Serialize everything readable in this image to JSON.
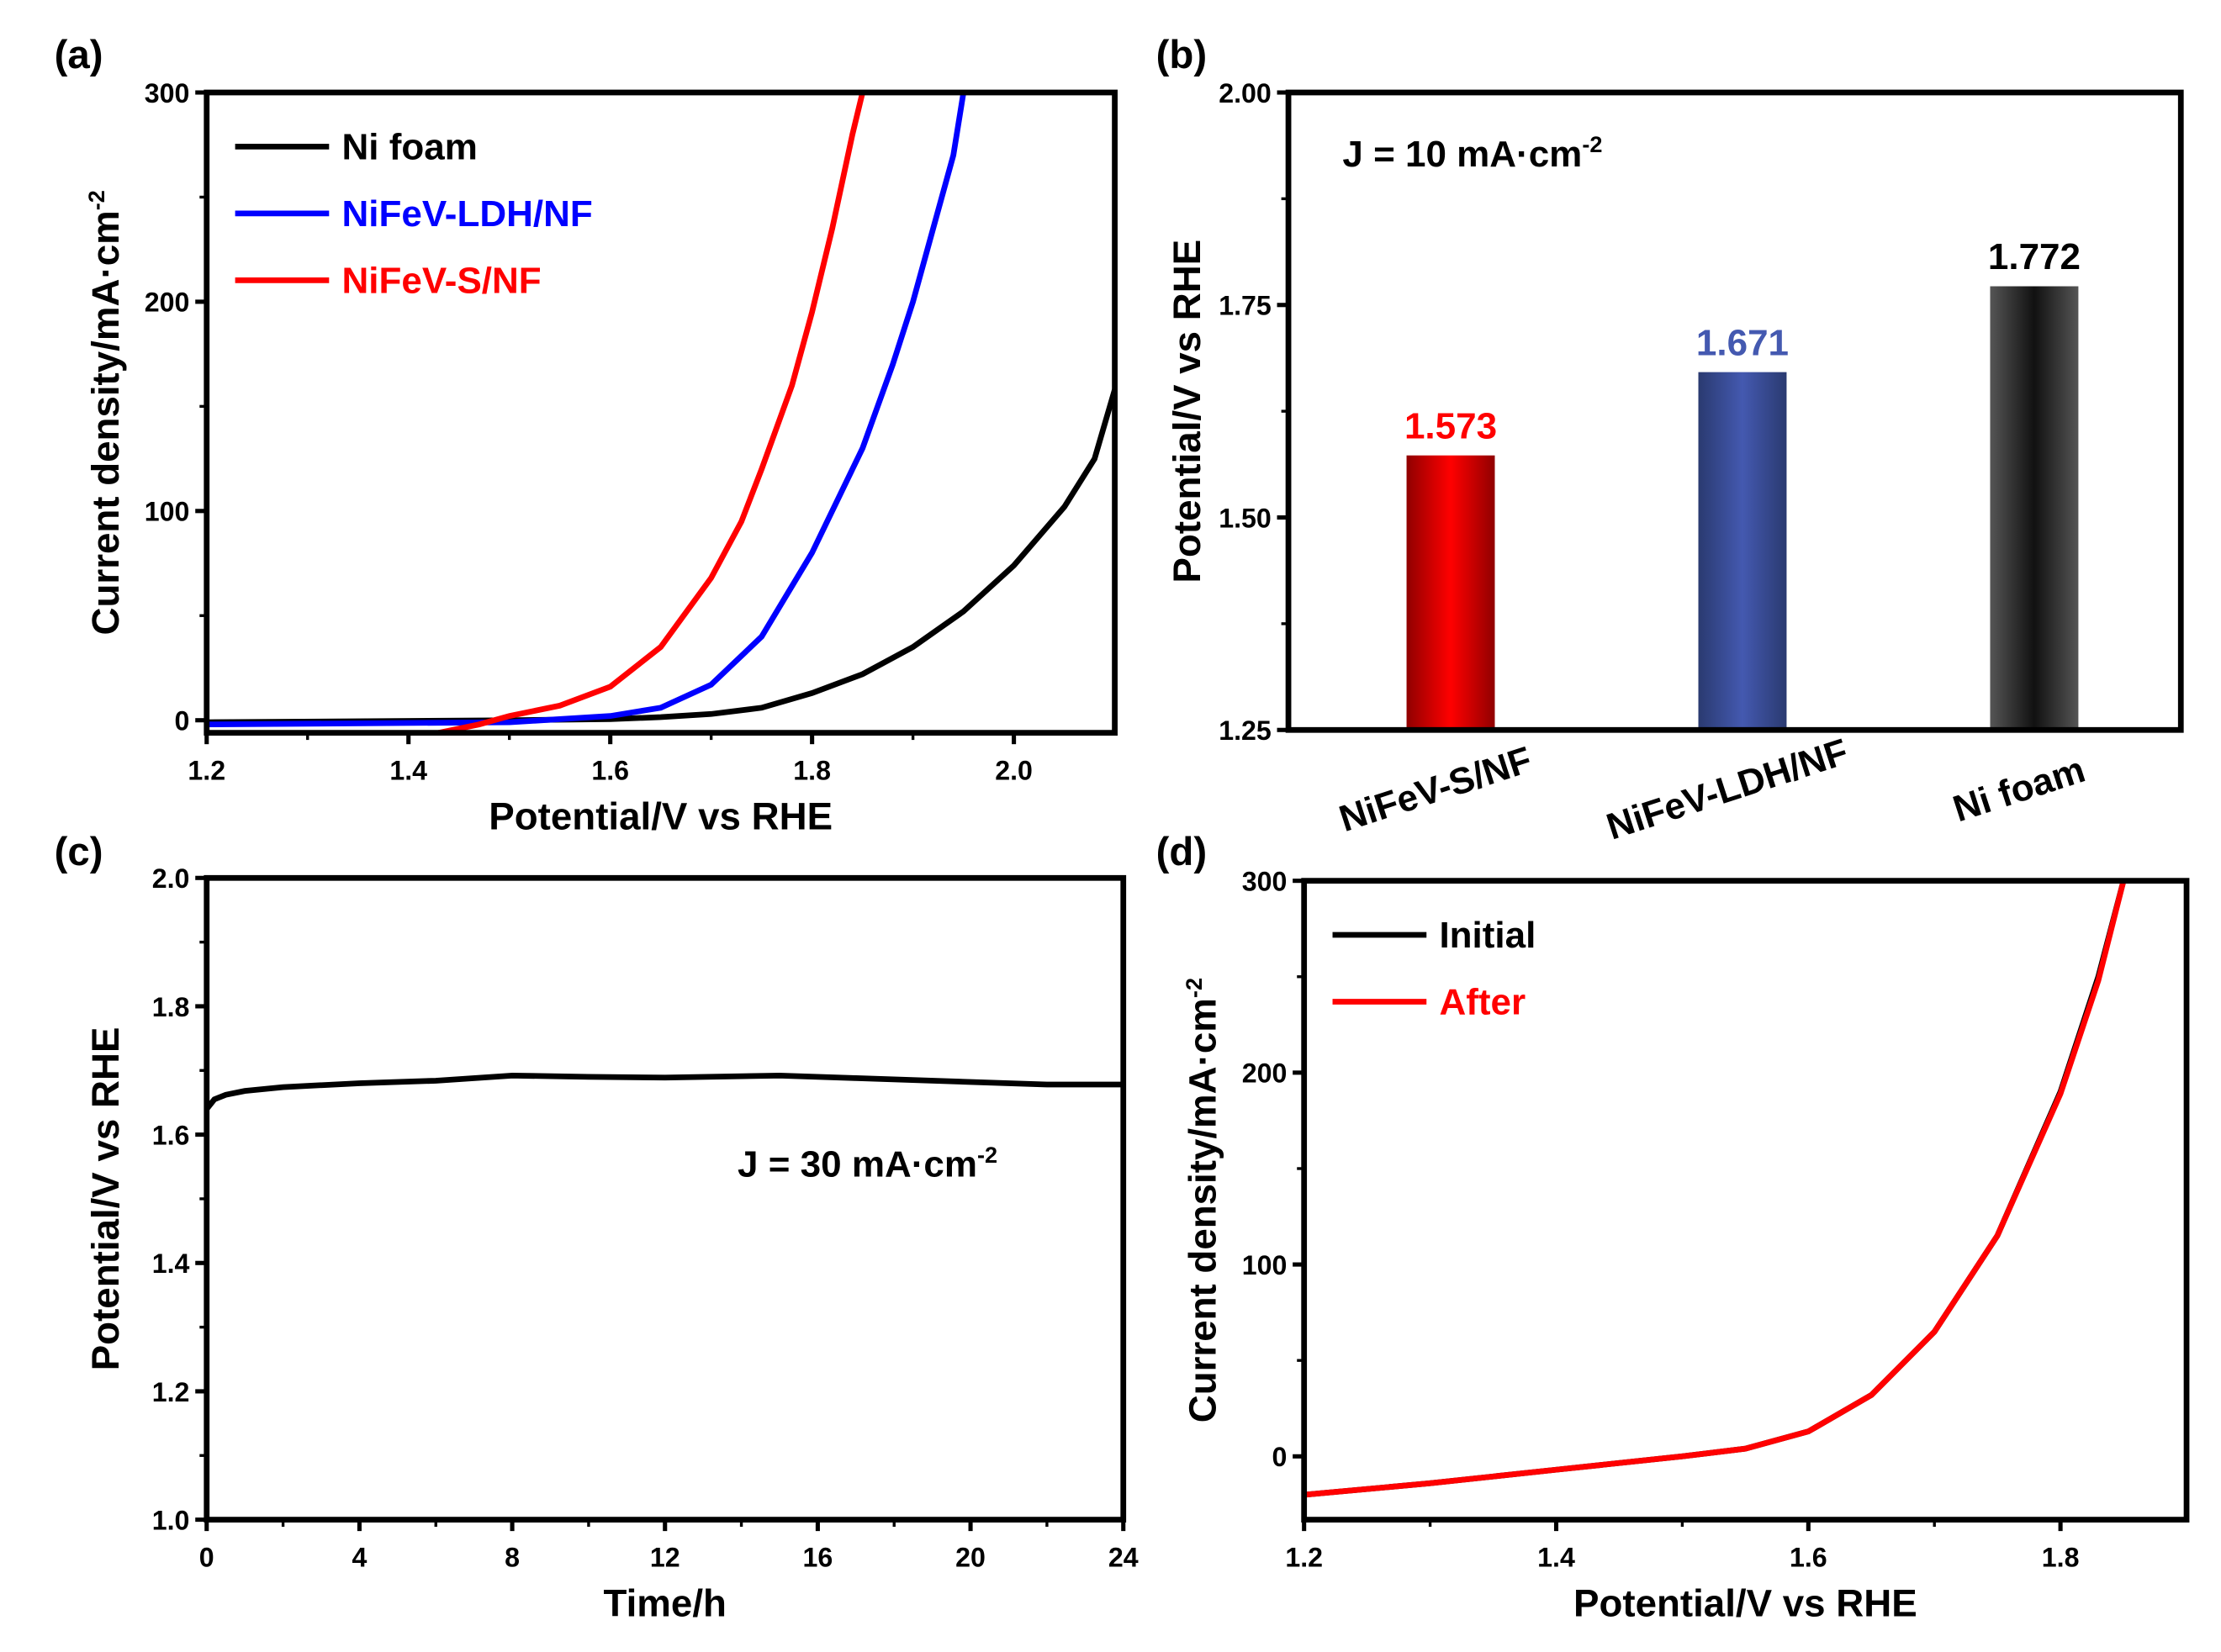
{
  "chart_data": [
    {
      "panel": "(a)",
      "type": "line",
      "xlabel": "Potential/V vs RHE",
      "ylabel": "Current density/mA·cm",
      "ylabel_sup": "-2",
      "xlim": [
        1.2,
        2.1
      ],
      "ylim": [
        -6,
        300
      ],
      "xticks": [
        1.2,
        1.4,
        1.6,
        1.8,
        2.0
      ],
      "xtick_labels": [
        "1.2",
        "1.4",
        "1.6",
        "1.8",
        "2.0"
      ],
      "yticks": [
        0,
        100,
        200,
        300
      ],
      "ytick_labels": [
        "0",
        "100",
        "200",
        "300"
      ],
      "legend": "top-left",
      "series": [
        {
          "name": "Ni foam",
          "color": "#000000",
          "x": [
            1.2,
            1.5,
            1.6,
            1.65,
            1.7,
            1.75,
            1.8,
            1.85,
            1.9,
            1.95,
            2.0,
            2.05,
            2.08,
            2.1
          ],
          "y": [
            -1,
            0,
            0.5,
            1.5,
            3,
            6,
            13,
            22,
            35,
            52,
            74,
            102,
            125,
            158
          ]
        },
        {
          "name": "NiFeV-LDH/NF",
          "color": "#0000ff",
          "x": [
            1.2,
            1.5,
            1.6,
            1.65,
            1.7,
            1.75,
            1.8,
            1.85,
            1.88,
            1.9,
            1.92,
            1.94,
            1.95
          ],
          "y": [
            -2,
            -1,
            2,
            6,
            17,
            40,
            80,
            130,
            170,
            200,
            235,
            270,
            300
          ]
        },
        {
          "name": "NiFeV-S/NF",
          "color": "#ff0000",
          "x": [
            1.43,
            1.47,
            1.5,
            1.55,
            1.6,
            1.65,
            1.7,
            1.73,
            1.75,
            1.78,
            1.8,
            1.82,
            1.84,
            1.85
          ],
          "y": [
            -6,
            -2,
            2,
            7,
            16,
            35,
            68,
            95,
            120,
            160,
            195,
            235,
            280,
            300
          ]
        }
      ]
    },
    {
      "panel": "(b)",
      "type": "bar",
      "ylabel": "Potential/V vs RHE",
      "annotation": "J = 10 mA·cm",
      "annotation_sup": "-2",
      "ylim": [
        1.25,
        2.0
      ],
      "yticks": [
        1.25,
        1.5,
        1.75,
        2.0
      ],
      "ytick_labels": [
        "1.25",
        "1.50",
        "1.75",
        "2.00"
      ],
      "categories": [
        "NiFeV-S/NF",
        "NiFeV-LDH/NF",
        "Ni foam"
      ],
      "values": [
        1.573,
        1.671,
        1.772
      ],
      "value_labels": [
        "1.573",
        "1.671",
        "1.772"
      ],
      "colors": [
        "#ff0000",
        "#4459b0",
        "#111111"
      ],
      "label_colors": [
        "#ff0000",
        "#4459b0",
        "#000000"
      ]
    },
    {
      "panel": "(c)",
      "type": "line",
      "xlabel": "Time/h",
      "ylabel": "Potential/V vs RHE",
      "annotation": "J = 30 mA·cm",
      "annotation_sup": "-2",
      "xlim": [
        0,
        24
      ],
      "ylim": [
        1.0,
        2.0
      ],
      "xticks": [
        0,
        4,
        8,
        12,
        16,
        20,
        24
      ],
      "xtick_labels": [
        "0",
        "4",
        "8",
        "12",
        "16",
        "20",
        "24"
      ],
      "yticks": [
        1.0,
        1.2,
        1.4,
        1.6,
        1.8,
        2.0
      ],
      "ytick_labels": [
        "1.0",
        "1.2",
        "1.4",
        "1.6",
        "1.8",
        "2.0"
      ],
      "series": [
        {
          "color": "#000000",
          "x": [
            0,
            0.2,
            0.5,
            1,
            2,
            4,
            6,
            8,
            10,
            12,
            15,
            17,
            20,
            22,
            24
          ],
          "y": [
            1.64,
            1.655,
            1.662,
            1.668,
            1.674,
            1.68,
            1.684,
            1.692,
            1.69,
            1.689,
            1.692,
            1.688,
            1.682,
            1.678,
            1.678
          ]
        }
      ]
    },
    {
      "panel": "(d)",
      "type": "line",
      "xlabel": "Potential/V vs RHE",
      "ylabel": "Current density/mA·cm",
      "ylabel_sup": "-2",
      "xlim": [
        1.2,
        1.9
      ],
      "ylim": [
        -33,
        300
      ],
      "xticks": [
        1.2,
        1.4,
        1.6,
        1.8
      ],
      "xtick_labels": [
        "1.2",
        "1.4",
        "1.6",
        "1.8"
      ],
      "yticks": [
        0,
        100,
        200,
        300
      ],
      "ytick_labels": [
        "0",
        "100",
        "200",
        "300"
      ],
      "legend": "top-left",
      "series": [
        {
          "name": "Initial",
          "color": "#000000",
          "x": [
            1.2,
            1.3,
            1.4,
            1.5,
            1.55,
            1.6,
            1.65,
            1.7,
            1.75,
            1.8,
            1.83,
            1.85
          ],
          "y": [
            -20,
            -14,
            -7,
            0,
            4,
            13,
            32,
            65,
            115,
            190,
            250,
            300
          ]
        },
        {
          "name": "After",
          "color": "#ff0000",
          "x": [
            1.2,
            1.3,
            1.4,
            1.5,
            1.55,
            1.6,
            1.65,
            1.7,
            1.75,
            1.8,
            1.83,
            1.85
          ],
          "y": [
            -20,
            -14,
            -7,
            0,
            4,
            13,
            32,
            65,
            115,
            189,
            248,
            300
          ]
        }
      ]
    }
  ]
}
